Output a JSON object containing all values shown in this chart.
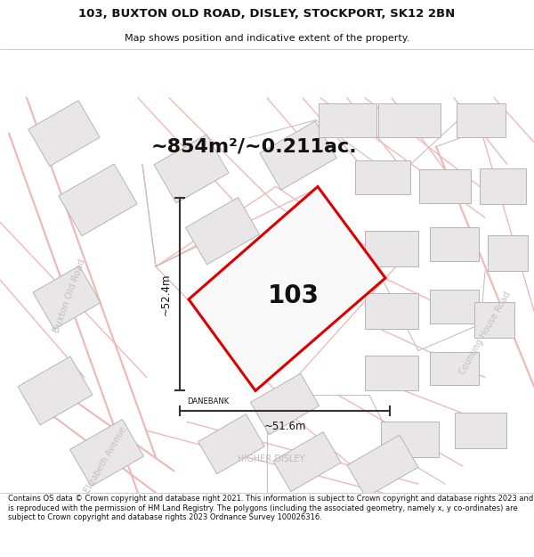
{
  "title_line1": "103, BUXTON OLD ROAD, DISLEY, STOCKPORT, SK12 2BN",
  "title_line2": "Map shows position and indicative extent of the property.",
  "area_text": "~854m²/~0.211ac.",
  "label_103": "103",
  "label_danebank": "DANEBANK",
  "label_higher_disley": "HIGHER DISLEY",
  "label_buxton_old_road": "Buxton Old Road",
  "label_elizabeth_avenue": "Elizabeth Avenue",
  "label_counting_house_road": "Counting House Road",
  "dim_vertical": "~52.4m",
  "dim_horizontal": "~51.6m",
  "footer_text": "Contains OS data © Crown copyright and database right 2021. This information is subject to Crown copyright and database rights 2023 and is reproduced with the permission of HM Land Registry. The polygons (including the associated geometry, namely x, y co-ordinates) are subject to Crown copyright and database rights 2023 Ordnance Survey 100026316.",
  "map_bg": "#ffffff",
  "road_color": "#f0b8b8",
  "road_outline_color": "#d08080",
  "building_color": "#e8e6e6",
  "building_edge": "#b8b4b4",
  "street_line_color": "#c8c0c0",
  "plot_outline_color": "#dd0000",
  "dim_line_color": "#333333",
  "text_color": "#111111",
  "road_label_color": "#aaaaaa",
  "title_bg": "#ffffff",
  "footer_bg": "#ffffff"
}
